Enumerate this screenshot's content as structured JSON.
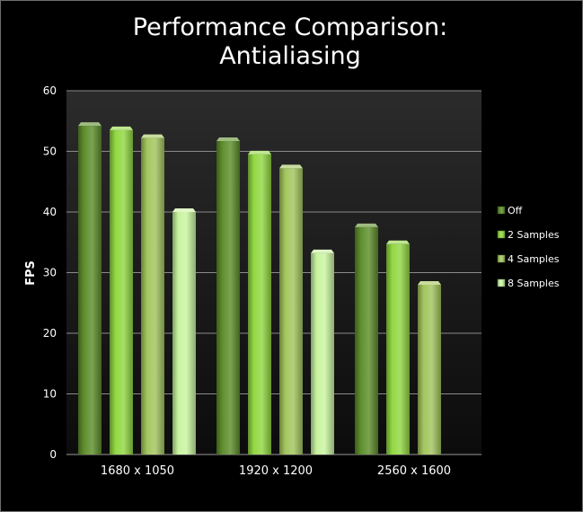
{
  "chart_data": {
    "type": "bar",
    "title": "Performance Comparison:",
    "subtitle": "Antialiasing",
    "xlabel": "",
    "ylabel": "FPS",
    "ylim": [
      0,
      60
    ],
    "yticks": [
      0,
      10,
      20,
      30,
      40,
      50,
      60
    ],
    "grid": true,
    "legend_position": "right",
    "categories": [
      "1680 x 1050",
      "1920 x 1200",
      "2560 x 1600"
    ],
    "series": [
      {
        "name": "Off",
        "color": "#5e8f2c",
        "values": [
          54.2,
          51.7,
          37.5
        ]
      },
      {
        "name": "2 Samples",
        "color": "#92d843",
        "values": [
          53.5,
          49.5,
          34.7
        ]
      },
      {
        "name": "4 Samples",
        "color": "#a3c65e",
        "values": [
          52.2,
          47.2,
          28.0
        ]
      },
      {
        "name": "8 Samples",
        "color": "#c9f4a0",
        "values": [
          40.0,
          33.2,
          null
        ]
      }
    ]
  }
}
